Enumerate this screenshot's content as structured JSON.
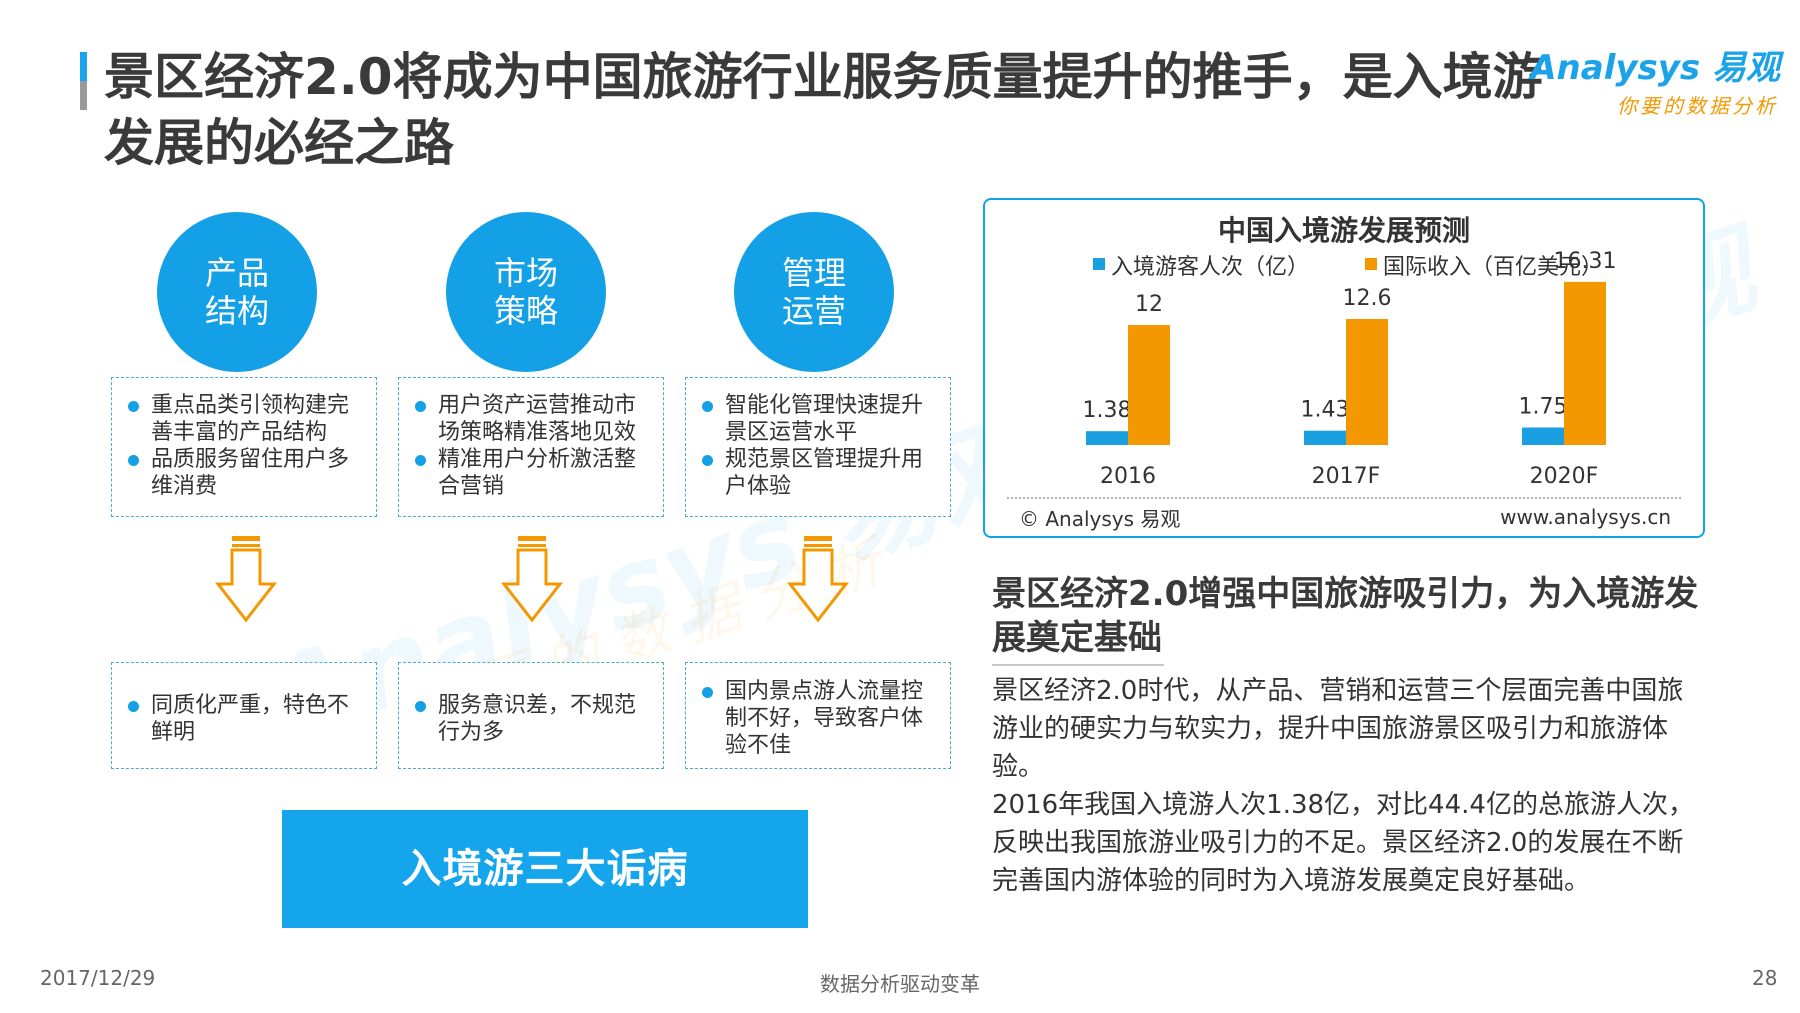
{
  "header": {
    "title": "景区经济2.0将成为中国旅游行业服务质量提升的推手，是入境游发展的必经之路",
    "logo_main": "Analysys 易观",
    "logo_sub": "你要的数据分析"
  },
  "pillars": [
    {
      "label": "产品结构",
      "bullets": [
        "重点品类引领构建完善丰富的产品结构",
        "品质服务留住用户多维消费"
      ],
      "problem": "同质化严重，特色不鲜明"
    },
    {
      "label": "市场策略",
      "bullets": [
        "用户资产运营推动市场策略精准落地见效",
        "精准用户分析激活整合营销"
      ],
      "problem": "服务意识差，不规范行为多"
    },
    {
      "label": "管理运营",
      "bullets": [
        "智能化管理快速提升景区运营水平",
        "规范景区管理提升用户体验"
      ],
      "problem": "国内景点游人流量控制不好，导致客户体验不佳"
    }
  ],
  "diagnosis_label": "入境游三大诟病",
  "chart_data": {
    "type": "bar",
    "title": "中国入境游发展预测",
    "categories": [
      "2016",
      "2017F",
      "2020F"
    ],
    "series": [
      {
        "name": "入境游客人次（亿）",
        "color": "#1a9fe0",
        "values": [
          1.38,
          1.43,
          1.75
        ],
        "labels": [
          "1.38",
          "1.43",
          "1.75"
        ]
      },
      {
        "name": "国际收入（百亿美元）",
        "color": "#f39800",
        "values": [
          12,
          12.6,
          16.31
        ],
        "labels": [
          "12",
          "12.6",
          "16.31"
        ]
      }
    ],
    "ylim": [
      0,
      17
    ],
    "source": "© Analysys 易观",
    "website": "www.analysys.cn"
  },
  "side": {
    "subtitle": "景区经济2.0增强中国旅游吸引力，为入境游发展奠定基础",
    "paragraph1": "景区经济2.0时代，从产品、营销和运营三个层面完善中国旅游业的硬实力与软实力，提升中国旅游景区吸引力和旅游体验。",
    "paragraph2": "2016年我国入境游人次1.38亿，对比44.4亿的总旅游人次，反映出我国旅游业吸引力的不足。景区经济2.0的发展在不断完善国内游体验的同时为入境游发展奠定良好基础。"
  },
  "footer": {
    "date": "2017/12/29",
    "center": "数据分析驱动变革",
    "page": "28"
  }
}
